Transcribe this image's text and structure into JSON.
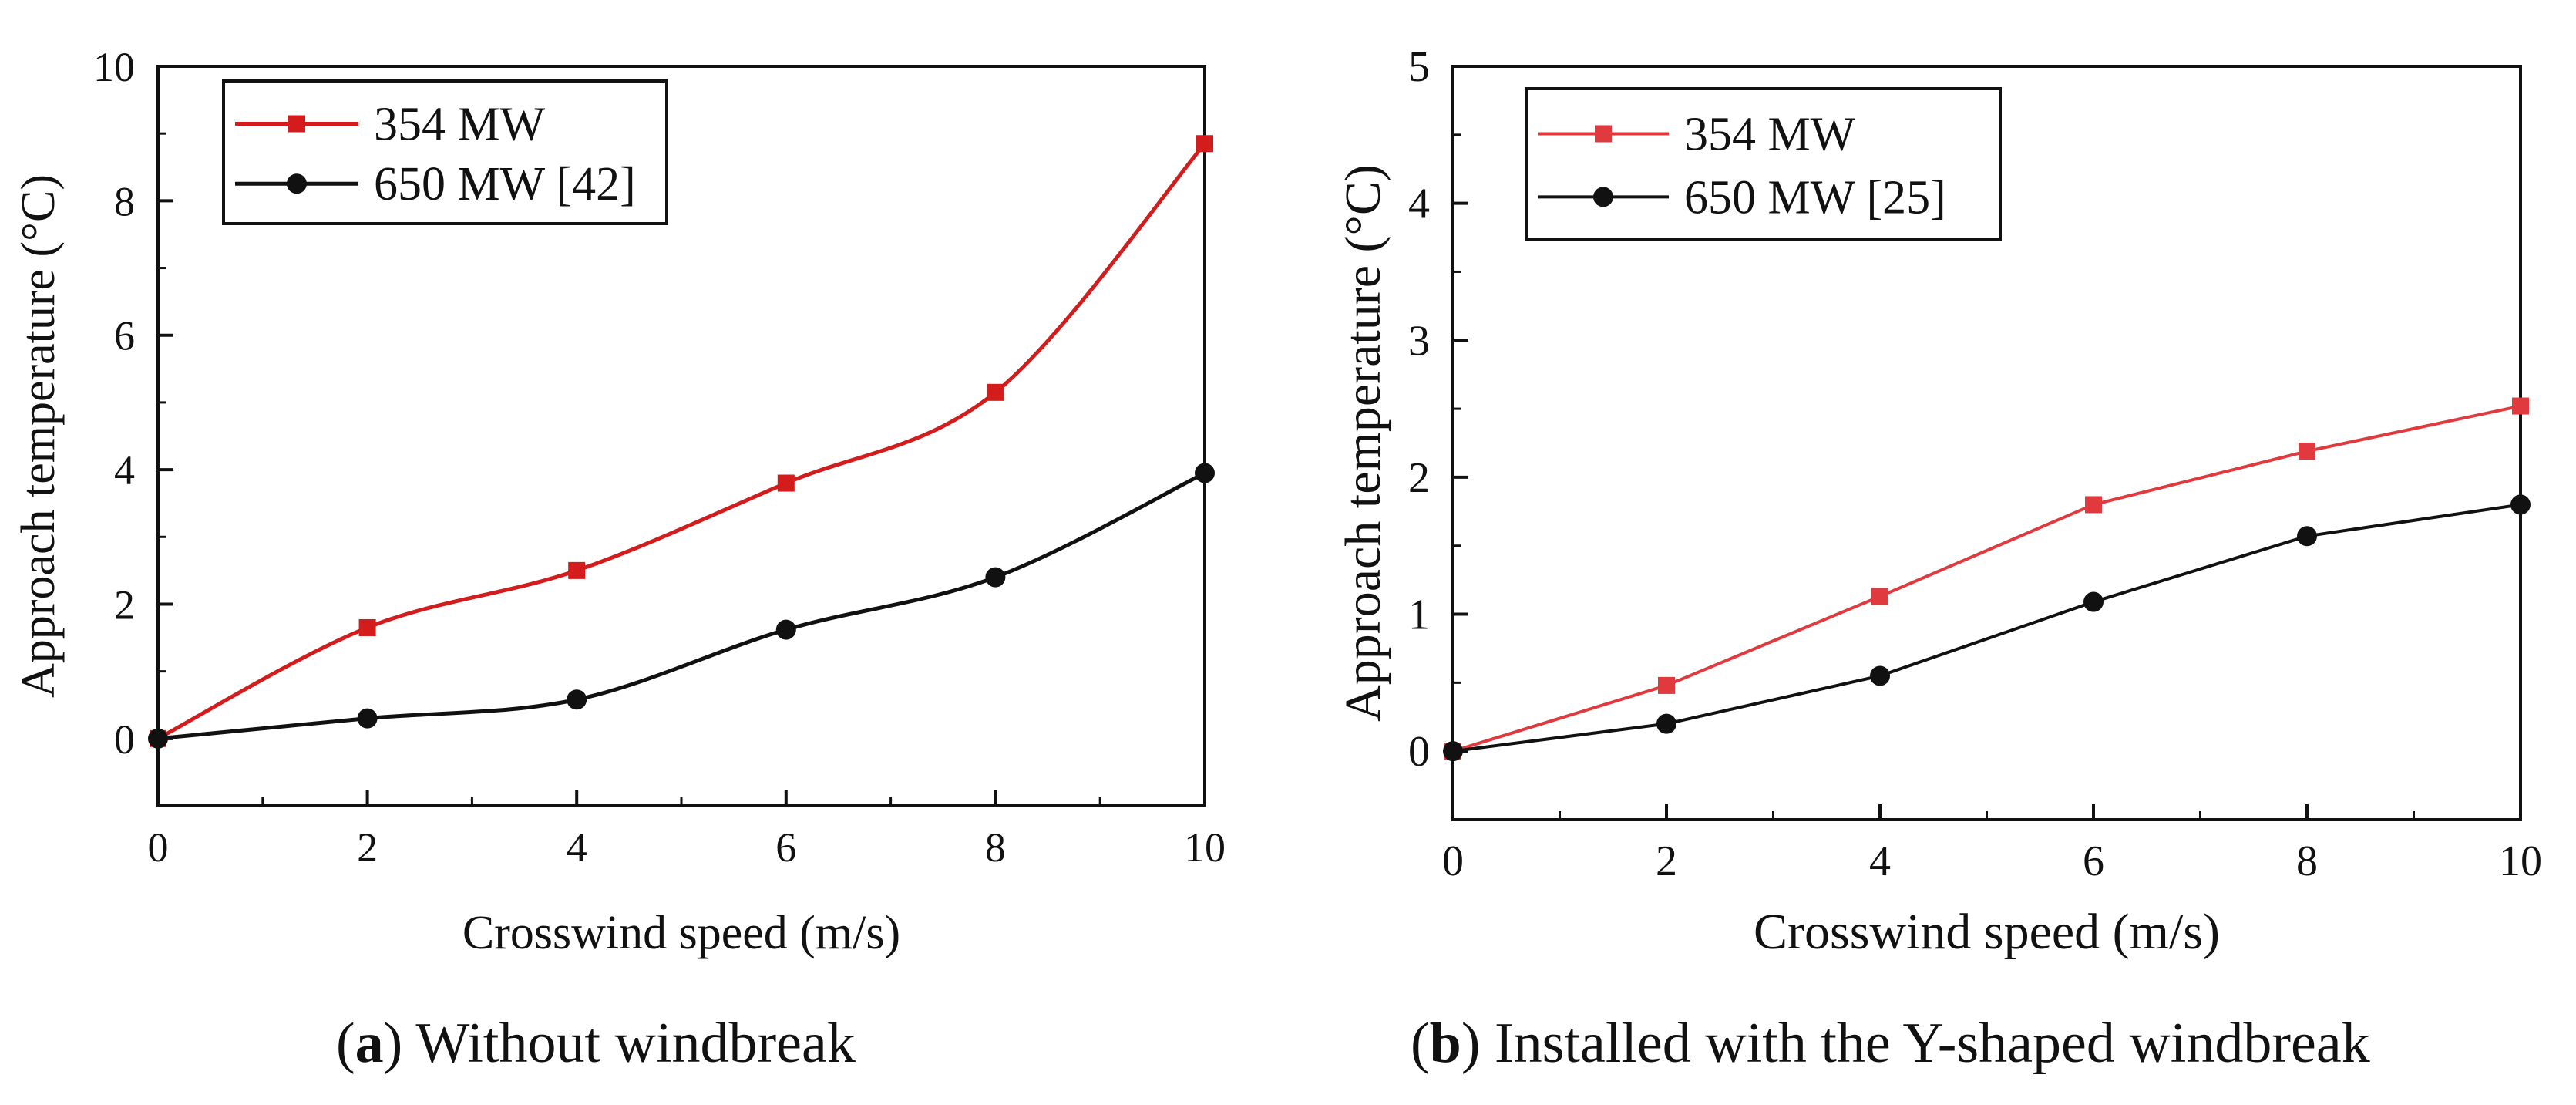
{
  "chart_data": [
    {
      "type": "line",
      "panel": "a",
      "xlabel": "Crosswind speed (m/s)",
      "ylabel": "Approach temperature (°C)",
      "xlim": [
        0,
        10
      ],
      "ylim": [
        -1,
        10
      ],
      "xticks": [
        0,
        2,
        4,
        6,
        8,
        10
      ],
      "yticks": [
        0,
        2,
        4,
        6,
        8,
        10
      ],
      "legend_position": "top-left",
      "smooth": true,
      "series": [
        {
          "name": "354 MW",
          "color": "#d41c1c",
          "marker": "square",
          "x": [
            0,
            2,
            4,
            6,
            8,
            10
          ],
          "y": [
            0,
            1.65,
            2.5,
            3.8,
            5.15,
            8.85
          ]
        },
        {
          "name": "650 MW [42]",
          "color": "#111111",
          "marker": "circle",
          "x": [
            0,
            2,
            4,
            6,
            8,
            10
          ],
          "y": [
            0,
            0.3,
            0.58,
            1.62,
            2.4,
            3.95
          ]
        }
      ]
    },
    {
      "type": "line",
      "panel": "b",
      "xlabel": "Crosswind speed (m/s)",
      "ylabel": "Approach temperature (°C)",
      "xlim": [
        0,
        10
      ],
      "ylim": [
        -0.5,
        5
      ],
      "xticks": [
        0,
        2,
        4,
        6,
        8,
        10
      ],
      "yticks": [
        0,
        1,
        2,
        3,
        4,
        5
      ],
      "legend_position": "top-left",
      "smooth": false,
      "series": [
        {
          "name": "354 MW",
          "color": "#e0393e",
          "marker": "square",
          "x": [
            0,
            2,
            4,
            6,
            8,
            10
          ],
          "y": [
            0,
            0.48,
            1.13,
            1.8,
            2.19,
            2.52
          ]
        },
        {
          "name": "650 MW [25]",
          "color": "#111111",
          "marker": "circle",
          "x": [
            0,
            2,
            4,
            6,
            8,
            10
          ],
          "y": [
            0,
            0.2,
            0.55,
            1.09,
            1.57,
            1.8
          ]
        }
      ]
    }
  ],
  "captions": {
    "a": {
      "letter": "a",
      "text": " Without windbreak"
    },
    "b": {
      "letter": "b",
      "text": " Installed with the Y-shaped windbreak"
    }
  }
}
